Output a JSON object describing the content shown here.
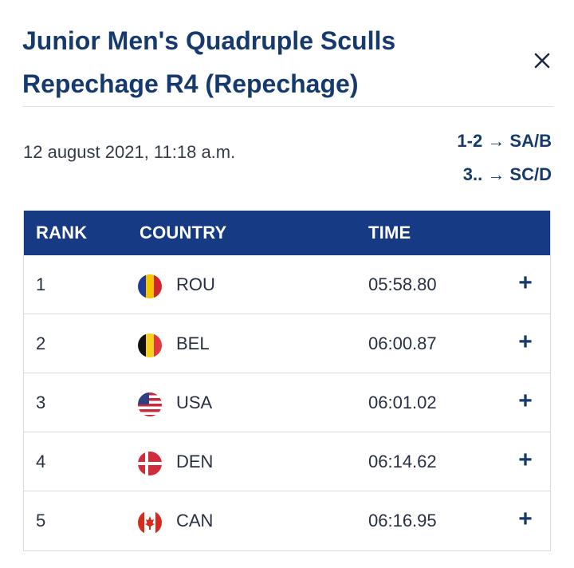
{
  "header": {
    "title_line1": "Junior Men's Quadruple Sculls",
    "title_line2": "Repechage R4 (Repechage)"
  },
  "meta": {
    "date": "12 august 2021, 11:18 a.m.",
    "progression": [
      "1-2 → SA/B",
      "3.. → SC/D"
    ]
  },
  "table": {
    "columns": [
      "RANK",
      "COUNTRY",
      "TIME"
    ],
    "rows": [
      {
        "rank": "1",
        "country": "ROU",
        "time": "05:58.80",
        "flag": "romania-flag-icon"
      },
      {
        "rank": "2",
        "country": "BEL",
        "time": "06:00.87",
        "flag": "belgium-flag-icon"
      },
      {
        "rank": "3",
        "country": "USA",
        "time": "06:01.02",
        "flag": "usa-flag-icon"
      },
      {
        "rank": "4",
        "country": "DEN",
        "time": "06:14.62",
        "flag": "denmark-flag-icon"
      },
      {
        "rank": "5",
        "country": "CAN",
        "time": "06:16.95",
        "flag": "canada-flag-icon"
      }
    ],
    "expand_symbol": "+"
  },
  "colors": {
    "title": "#163a6e",
    "header_bg": "#163a84"
  }
}
